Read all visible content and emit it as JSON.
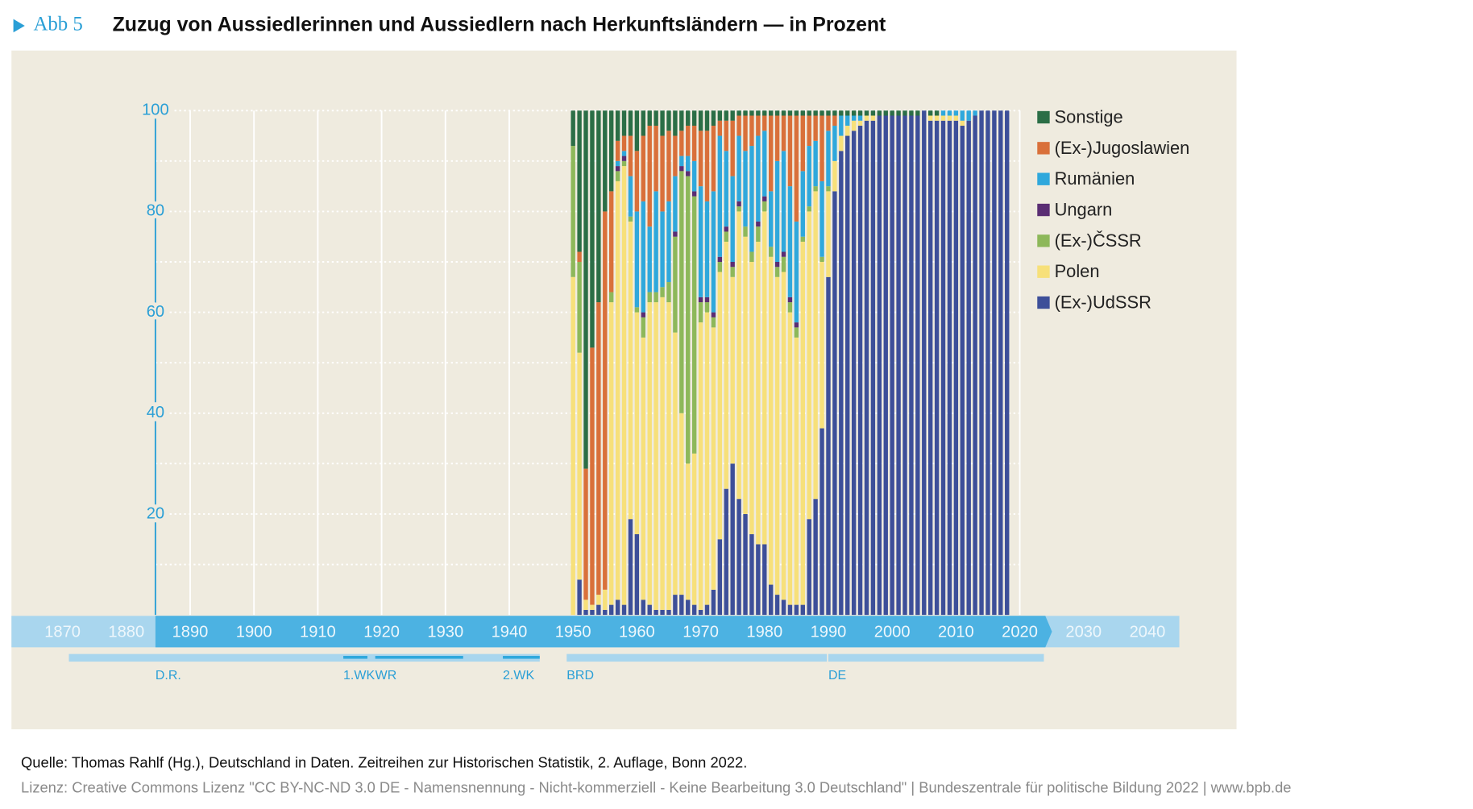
{
  "header": {
    "label": "Abb 5",
    "title": "Zuzug von Aussiedlerinnen und Aussiedlern nach Herkunftsländern — in Prozent"
  },
  "chart_data": {
    "type": "bar",
    "stacked": true,
    "x": [
      1950,
      1951,
      1952,
      1953,
      1954,
      1955,
      1956,
      1957,
      1958,
      1959,
      1960,
      1961,
      1962,
      1963,
      1964,
      1965,
      1966,
      1967,
      1968,
      1969,
      1970,
      1971,
      1972,
      1973,
      1974,
      1975,
      1976,
      1977,
      1978,
      1979,
      1980,
      1981,
      1982,
      1983,
      1984,
      1985,
      1986,
      1987,
      1988,
      1989,
      1990,
      1991,
      1992,
      1993,
      1994,
      1995,
      1996,
      1997,
      1998,
      1999,
      2000,
      2001,
      2002,
      2003,
      2004,
      2005,
      2006,
      2007,
      2008,
      2009,
      2010,
      2011,
      2012,
      2013,
      2014,
      2015,
      2016,
      2017,
      2018
    ],
    "series": [
      {
        "name": "(Ex-)UdSSR",
        "color": "#3d4f99",
        "values": [
          0,
          7,
          1,
          1,
          2,
          1,
          2,
          3,
          2,
          19,
          16,
          3,
          2,
          1,
          1,
          1,
          4,
          4,
          3,
          2,
          1,
          2,
          5,
          15,
          25,
          30,
          23,
          20,
          16,
          14,
          14,
          6,
          4,
          3,
          2,
          2,
          2,
          19,
          23,
          37,
          67,
          84,
          92,
          95,
          96,
          97,
          98,
          98,
          99,
          99,
          99,
          99,
          99,
          99,
          99,
          100,
          98,
          98,
          98,
          98,
          98,
          97,
          98,
          99,
          100,
          100,
          100,
          100,
          100
        ]
      },
      {
        "name": "Polen",
        "color": "#f7e07a",
        "values": [
          67,
          45,
          2,
          1,
          2,
          4,
          60,
          83,
          87,
          59,
          44,
          52,
          60,
          61,
          62,
          61,
          52,
          36,
          27,
          30,
          57,
          58,
          52,
          53,
          49,
          37,
          57,
          55,
          54,
          60,
          66,
          65,
          63,
          65,
          58,
          53,
          72,
          61,
          61,
          33,
          17,
          6,
          3,
          2,
          2,
          1,
          1,
          1,
          0,
          0,
          0,
          0,
          0,
          0,
          0,
          0,
          1,
          1,
          1,
          1,
          1,
          1,
          0,
          0,
          0,
          0,
          0,
          0,
          0
        ]
      },
      {
        "name": "(Ex-)ČSSR",
        "color": "#8db85a",
        "values": [
          26,
          18,
          0,
          0,
          0,
          0,
          2,
          2,
          1,
          1,
          1,
          4,
          2,
          2,
          2,
          4,
          19,
          48,
          57,
          51,
          4,
          2,
          2,
          2,
          2,
          2,
          1,
          2,
          2,
          3,
          2,
          2,
          2,
          3,
          2,
          2,
          1,
          1,
          1,
          1,
          1,
          0,
          0,
          0,
          0,
          0,
          0,
          0,
          0,
          0,
          0,
          0,
          0,
          0,
          0,
          0,
          0,
          0,
          0,
          0,
          0,
          0,
          0,
          0,
          0,
          0,
          0,
          0,
          0
        ]
      },
      {
        "name": "Ungarn",
        "color": "#5a2d73",
        "values": [
          0,
          0,
          0,
          0,
          0,
          0,
          0,
          1,
          1,
          0,
          0,
          1,
          0,
          0,
          0,
          0,
          1,
          1,
          1,
          1,
          1,
          1,
          1,
          1,
          1,
          1,
          1,
          0,
          0,
          1,
          1,
          0,
          1,
          1,
          1,
          1,
          0,
          0,
          0,
          0,
          0,
          0,
          0,
          0,
          0,
          0,
          0,
          0,
          0,
          0,
          0,
          0,
          0,
          0,
          0,
          0,
          0,
          0,
          0,
          0,
          0,
          0,
          0,
          0,
          0,
          0,
          0,
          0,
          0
        ]
      },
      {
        "name": "Rumänien",
        "color": "#2fa8dc",
        "values": [
          0,
          0,
          0,
          0,
          0,
          0,
          0,
          1,
          1,
          8,
          19,
          22,
          13,
          20,
          15,
          16,
          11,
          2,
          3,
          6,
          22,
          19,
          24,
          24,
          15,
          17,
          13,
          15,
          21,
          17,
          13,
          11,
          20,
          20,
          22,
          20,
          13,
          12,
          9,
          15,
          11,
          7,
          4,
          2,
          1,
          1,
          0,
          0,
          0,
          0,
          0,
          0,
          0,
          0,
          0,
          0,
          0,
          0,
          1,
          1,
          1,
          2,
          2,
          1,
          0,
          0,
          0,
          0,
          0
        ]
      },
      {
        "name": "(Ex-)Jugoslawien",
        "color": "#d9703a",
        "values": [
          0,
          2,
          26,
          51,
          58,
          75,
          20,
          4,
          3,
          8,
          12,
          13,
          20,
          13,
          15,
          14,
          8,
          5,
          6,
          7,
          11,
          14,
          13,
          3,
          6,
          11,
          4,
          7,
          6,
          4,
          3,
          15,
          9,
          7,
          14,
          21,
          11,
          6,
          5,
          13,
          3,
          2,
          0,
          0,
          0,
          0,
          0,
          0,
          0,
          0,
          0,
          0,
          0,
          0,
          0,
          0,
          0,
          0,
          0,
          0,
          0,
          0,
          0,
          0,
          0,
          0,
          0,
          0,
          0
        ]
      },
      {
        "name": "Sonstige",
        "color": "#2b6e46",
        "values": [
          7,
          28,
          71,
          47,
          38,
          20,
          16,
          6,
          5,
          5,
          8,
          5,
          3,
          3,
          5,
          4,
          5,
          4,
          3,
          3,
          4,
          4,
          3,
          2,
          2,
          2,
          1,
          1,
          1,
          1,
          1,
          1,
          1,
          1,
          1,
          1,
          1,
          1,
          1,
          1,
          1,
          1,
          1,
          1,
          1,
          1,
          1,
          1,
          1,
          1,
          1,
          1,
          1,
          1,
          1,
          0,
          1,
          1,
          0,
          0,
          0,
          0,
          0,
          0,
          0,
          0,
          0,
          0,
          0
        ]
      }
    ],
    "ylim": [
      0,
      100
    ],
    "yticks": [
      20,
      40,
      60,
      80,
      100
    ],
    "ygrid": [
      10,
      20,
      30,
      40,
      50,
      60,
      70,
      80,
      90,
      100
    ],
    "xlim": [
      1862,
      2045
    ],
    "xticks": [
      1870,
      1880,
      1890,
      1900,
      1910,
      1920,
      1930,
      1940,
      1950,
      1960,
      1970,
      1980,
      1990,
      2000,
      2010,
      2020,
      2030,
      2040
    ],
    "grid": true,
    "legend": "right",
    "periods": [
      {
        "label": "D.R.",
        "start": 1871,
        "end": 1945,
        "color": "#a9d6ee"
      },
      {
        "label": "1.WK",
        "start": 1914,
        "end": 1918,
        "color": "#2fa8dc"
      },
      {
        "label": "WR",
        "start": 1919,
        "end": 1933,
        "color": "#2fa8dc"
      },
      {
        "label": "2.WK",
        "start": 1939,
        "end": 1945,
        "color": "#2fa8dc"
      },
      {
        "label": "BRD",
        "start": 1949,
        "end": 1990,
        "color": "#a9d6ee"
      },
      {
        "label": "DE",
        "start": 1990,
        "end": 2024,
        "color": "#a9d6ee"
      }
    ]
  },
  "footer": {
    "source": "Quelle: Thomas Rahlf (Hg.), Deutschland in Daten. Zeitreihen zur Historischen Statistik, 2. Auflage, Bonn 2022.",
    "license": "Lizenz: Creative Commons Lizenz \"CC BY-NC-ND 3.0 DE - Namensnennung - Nicht-kommerziell - Keine Bearbeitung 3.0 Deutschland\" | Bundeszentrale für politische Bildung 2022 | www.bpb.de"
  }
}
